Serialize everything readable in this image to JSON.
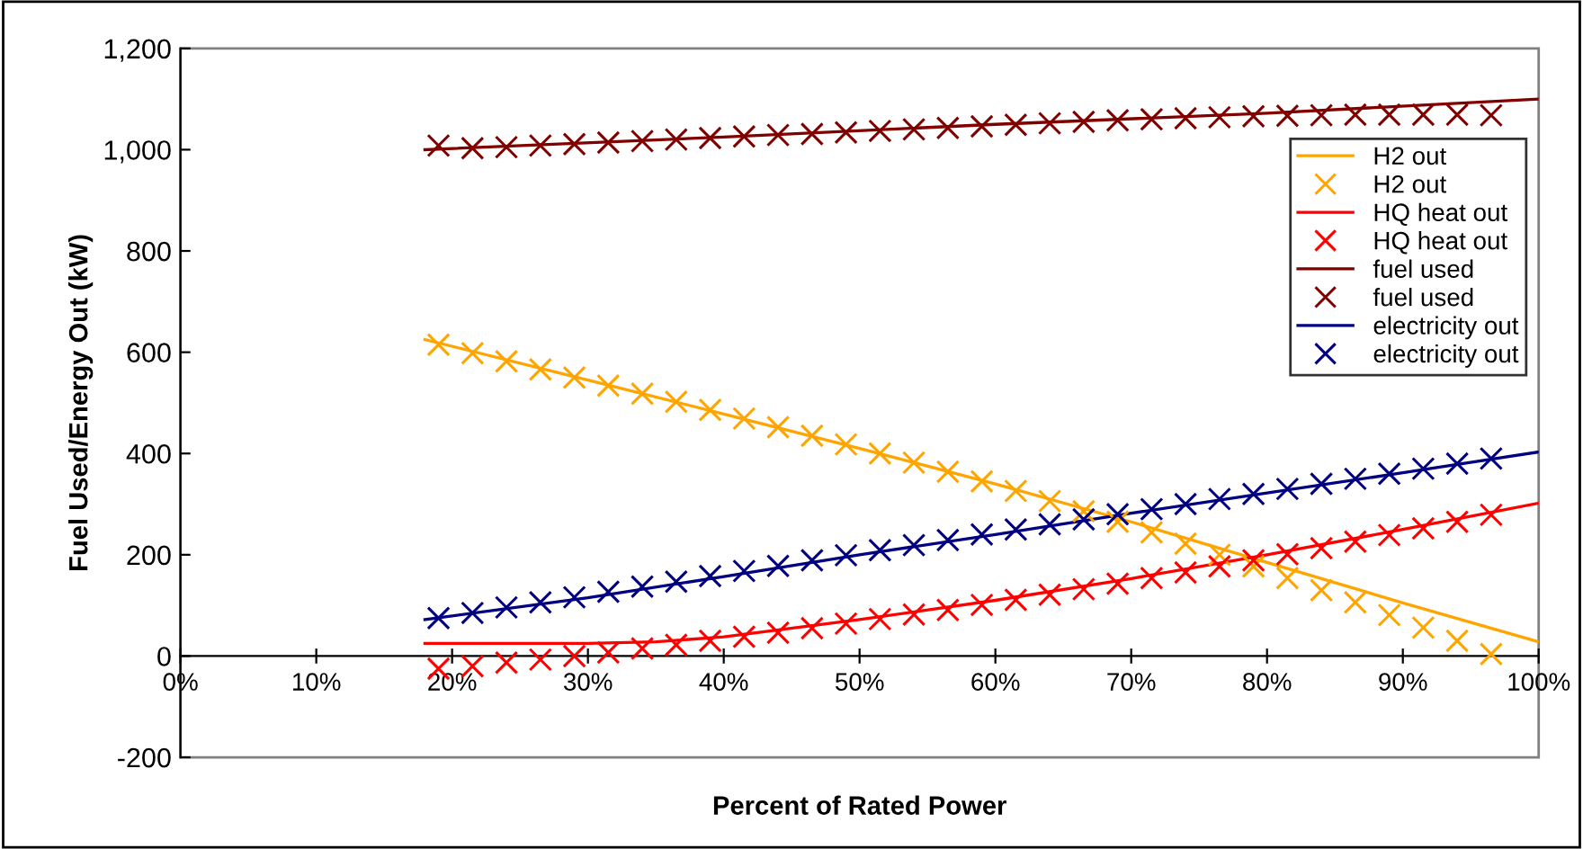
{
  "chart_data": {
    "type": "line",
    "xlabel": "Percent of Rated Power",
    "ylabel": "Fuel Used/Energy Out (kW)",
    "xlim": [
      0,
      100
    ],
    "xticks": [
      {
        "value": 0,
        "label": "0%"
      },
      {
        "value": 10,
        "label": "10%"
      },
      {
        "value": 20,
        "label": "20%"
      },
      {
        "value": 30,
        "label": "30%"
      },
      {
        "value": 40,
        "label": "40%"
      },
      {
        "value": 50,
        "label": "50%"
      },
      {
        "value": 60,
        "label": "60%"
      },
      {
        "value": 70,
        "label": "70%"
      },
      {
        "value": 80,
        "label": "80%"
      },
      {
        "value": 90,
        "label": "90%"
      },
      {
        "value": 100,
        "label": "100%"
      }
    ],
    "ylim": [
      -200,
      1200
    ],
    "yticks": [
      {
        "value": -200,
        "label": "-200"
      },
      0,
      {
        "value": 200,
        "label": "200"
      },
      {
        "value": 400,
        "label": "400"
      },
      {
        "value": 600,
        "label": "600"
      },
      {
        "value": 800,
        "label": "800"
      },
      {
        "value": 1000,
        "label": "1,000"
      },
      {
        "value": 1200,
        "label": "1,200"
      }
    ],
    "grid": false,
    "legend": "top right",
    "series": [
      {
        "name": "H2 out",
        "marker": "none",
        "color": "#ffa500",
        "x": [
          18,
          30,
          40,
          50,
          60,
          70,
          80,
          90,
          100
        ],
        "values": [
          625,
          545,
          478,
          410,
          340,
          265,
          185,
          105,
          28
        ]
      },
      {
        "name": "H2 out",
        "type": "scatter",
        "marker": "cross",
        "color": "#ffa500",
        "x": [
          19,
          21.5,
          24,
          26.5,
          29,
          31.5,
          34,
          36.5,
          39,
          41.5,
          44,
          46.5,
          49,
          51.5,
          54,
          56.5,
          59,
          61.5,
          64,
          66.5,
          69,
          71.5,
          74,
          76.5,
          79,
          81.5,
          84,
          86.5,
          89,
          91.5,
          94,
          96.5
        ],
        "values": [
          615,
          598,
          582,
          566,
          550,
          534,
          518,
          502,
          486,
          469,
          452,
          435,
          418,
          400,
          382,
          364,
          345,
          326,
          306,
          286,
          265,
          244,
          222,
          200,
          177,
          154,
          130,
          106,
          81,
          56,
          30,
          4
        ]
      },
      {
        "name": "HQ heat out",
        "marker": "none",
        "color": "#ff0000",
        "x": [
          18,
          30,
          35,
          40,
          50,
          60,
          70,
          80,
          90,
          100
        ],
        "values": [
          25,
          25,
          28,
          38,
          72,
          110,
          153,
          200,
          250,
          302
        ]
      },
      {
        "name": "HQ heat out",
        "type": "scatter",
        "marker": "cross",
        "color": "#ff0000",
        "x": [
          19,
          21.5,
          24,
          26.5,
          29,
          31.5,
          34,
          36.5,
          39,
          41.5,
          44,
          46.5,
          49,
          51.5,
          54,
          56.5,
          59,
          61.5,
          64,
          66.5,
          69,
          71.5,
          74,
          76.5,
          79,
          81.5,
          84,
          86.5,
          89,
          91.5,
          94,
          96.5
        ],
        "values": [
          -25,
          -20,
          -13,
          -7,
          0,
          7,
          15,
          22,
          30,
          38,
          46,
          55,
          64,
          73,
          82,
          91,
          101,
          111,
          121,
          132,
          143,
          154,
          165,
          177,
          189,
          201,
          213,
          226,
          239,
          252,
          265,
          279
        ]
      },
      {
        "name": "fuel used",
        "marker": "none",
        "color": "#800000",
        "x": [
          18,
          40,
          60,
          80,
          100
        ],
        "values": [
          1000,
          1025,
          1050,
          1072,
          1100
        ]
      },
      {
        "name": "fuel used",
        "type": "scatter",
        "marker": "cross",
        "color": "#800000",
        "x": [
          19,
          21.5,
          24,
          26.5,
          29,
          31.5,
          34,
          36.5,
          39,
          41.5,
          44,
          46.5,
          49,
          51.5,
          54,
          56.5,
          59,
          61.5,
          64,
          66.5,
          69,
          71.5,
          74,
          76.5,
          79,
          81.5,
          84,
          86.5,
          89,
          91.5,
          94,
          96.5
        ],
        "values": [
          1008,
          1003,
          1005,
          1008,
          1011,
          1014,
          1017,
          1020,
          1023,
          1026,
          1029,
          1031,
          1034,
          1037,
          1040,
          1043,
          1046,
          1049,
          1052,
          1055,
          1058,
          1060,
          1062,
          1064,
          1066,
          1067,
          1068,
          1069,
          1069,
          1069,
          1069,
          1068
        ]
      },
      {
        "name": "electricity out",
        "marker": "none",
        "color": "#000080",
        "x": [
          18,
          30,
          40,
          50,
          60,
          70,
          80,
          90,
          100
        ],
        "values": [
          72,
          115,
          157,
          200,
          240,
          282,
          322,
          362,
          403
        ]
      },
      {
        "name": "electricity out",
        "type": "scatter",
        "marker": "cross",
        "color": "#000080",
        "x": [
          19,
          21.5,
          24,
          26.5,
          29,
          31.5,
          34,
          36.5,
          39,
          41.5,
          44,
          46.5,
          49,
          51.5,
          54,
          56.5,
          59,
          61.5,
          64,
          66.5,
          69,
          71.5,
          74,
          76.5,
          79,
          81.5,
          84,
          86.5,
          89,
          91.5,
          94,
          96.5
        ],
        "values": [
          75,
          85,
          96,
          106,
          116,
          127,
          137,
          147,
          158,
          168,
          178,
          189,
          199,
          209,
          219,
          229,
          240,
          250,
          260,
          270,
          280,
          290,
          300,
          310,
          320,
          330,
          340,
          350,
          360,
          370,
          380,
          390
        ]
      }
    ]
  }
}
